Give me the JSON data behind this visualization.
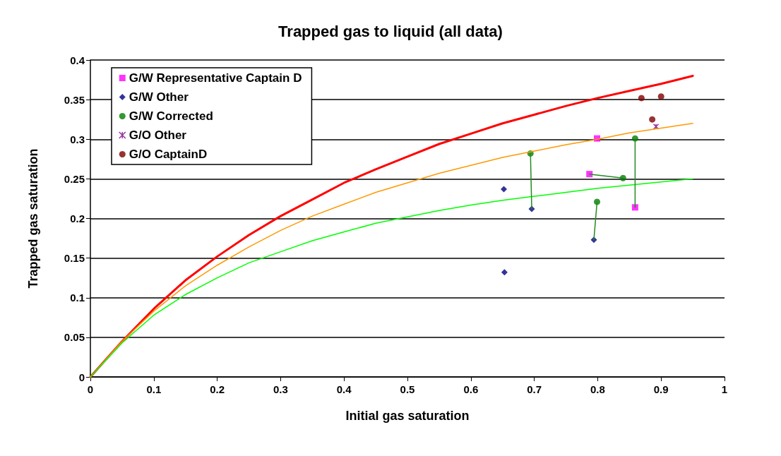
{
  "chart_data": {
    "type": "scatter",
    "title": "Trapped gas to liquid (all data)",
    "xlabel": "Initial gas saturation",
    "ylabel": "Trapped gas saturation",
    "xlim": [
      0,
      1
    ],
    "xticks": [
      0,
      0.1,
      0.2,
      0.3,
      0.4,
      0.5,
      0.6,
      0.7,
      0.8,
      0.9,
      1
    ],
    "ylim": [
      0,
      0.4
    ],
    "yticks": [
      0,
      0.05,
      0.1,
      0.15,
      0.2,
      0.25,
      0.3,
      0.35,
      0.4
    ],
    "grid": "y",
    "legend": "top left",
    "series": [
      {
        "type": "line",
        "color": "#ff0000",
        "marker": "none",
        "x": [
          0,
          0.05,
          0.1,
          0.15,
          0.2,
          0.25,
          0.3,
          0.35,
          0.4,
          0.45,
          0.5,
          0.55,
          0.6,
          0.65,
          0.7,
          0.75,
          0.8,
          0.85,
          0.9,
          0.95
        ],
        "values": [
          0,
          0.045,
          0.086,
          0.122,
          0.152,
          0.179,
          0.203,
          0.224,
          0.245,
          0.262,
          0.278,
          0.294,
          0.307,
          0.32,
          0.331,
          0.342,
          0.352,
          0.361,
          0.37,
          0.38
        ]
      },
      {
        "type": "line",
        "color": "#ff9900",
        "marker": "none",
        "x": [
          0,
          0.05,
          0.1,
          0.15,
          0.2,
          0.25,
          0.3,
          0.35,
          0.4,
          0.45,
          0.5,
          0.55,
          0.6,
          0.65,
          0.7,
          0.75,
          0.8,
          0.85,
          0.9,
          0.95
        ],
        "values": [
          0,
          0.045,
          0.083,
          0.115,
          0.141,
          0.164,
          0.185,
          0.203,
          0.218,
          0.233,
          0.245,
          0.257,
          0.267,
          0.277,
          0.285,
          0.293,
          0.3,
          0.308,
          0.314,
          0.32
        ]
      },
      {
        "type": "line",
        "color": "#00ff00",
        "marker": "none",
        "x": [
          0,
          0.05,
          0.1,
          0.15,
          0.2,
          0.25,
          0.3,
          0.35,
          0.4,
          0.45,
          0.5,
          0.55,
          0.6,
          0.65,
          0.7,
          0.75,
          0.8,
          0.85,
          0.9,
          0.95
        ],
        "values": [
          0,
          0.043,
          0.078,
          0.104,
          0.125,
          0.144,
          0.158,
          0.172,
          0.183,
          0.194,
          0.202,
          0.21,
          0.217,
          0.223,
          0.228,
          0.233,
          0.238,
          0.242,
          0.246,
          0.25
        ]
      },
      {
        "type": "line",
        "color": "#228b22",
        "marker": "none",
        "x": [
          0.694,
          0.696
        ],
        "values": [
          0.282,
          0.212
        ]
      },
      {
        "type": "line",
        "color": "#228b22",
        "marker": "none",
        "x": [
          0.787,
          0.84
        ],
        "values": [
          0.256,
          0.251
        ]
      },
      {
        "type": "line",
        "color": "#228b22",
        "marker": "none",
        "x": [
          0.859,
          0.859
        ],
        "values": [
          0.301,
          0.214
        ]
      },
      {
        "type": "line",
        "color": "#228b22",
        "marker": "none",
        "x": [
          0.799,
          0.794
        ],
        "values": [
          0.221,
          0.173
        ]
      },
      {
        "name": "G/W Representative Captain D",
        "color": "#ff00ff",
        "marker": "square",
        "x": [
          0.799,
          0.787,
          0.859
        ],
        "values": [
          0.301,
          0.256,
          0.214
        ]
      },
      {
        "name": "G/W Other",
        "color": "#000080",
        "marker": "diamond",
        "x": [
          0.652,
          0.696,
          0.794,
          0.653
        ],
        "values": [
          0.237,
          0.212,
          0.173,
          0.132
        ]
      },
      {
        "name": "G/W Corrected",
        "color": "#008000",
        "marker": "circle",
        "x": [
          0.694,
          0.84,
          0.859,
          0.799
        ],
        "values": [
          0.282,
          0.251,
          0.301,
          0.221
        ]
      },
      {
        "name": "G/O Other",
        "color": "#800080",
        "marker": "cross",
        "x": [
          0.892
        ],
        "values": [
          0.316
        ]
      },
      {
        "name": "G/O CaptainD",
        "color": "#800000",
        "marker": "circle",
        "x": [
          0.869,
          0.9,
          0.886
        ],
        "values": [
          0.352,
          0.354,
          0.325
        ]
      }
    ]
  }
}
